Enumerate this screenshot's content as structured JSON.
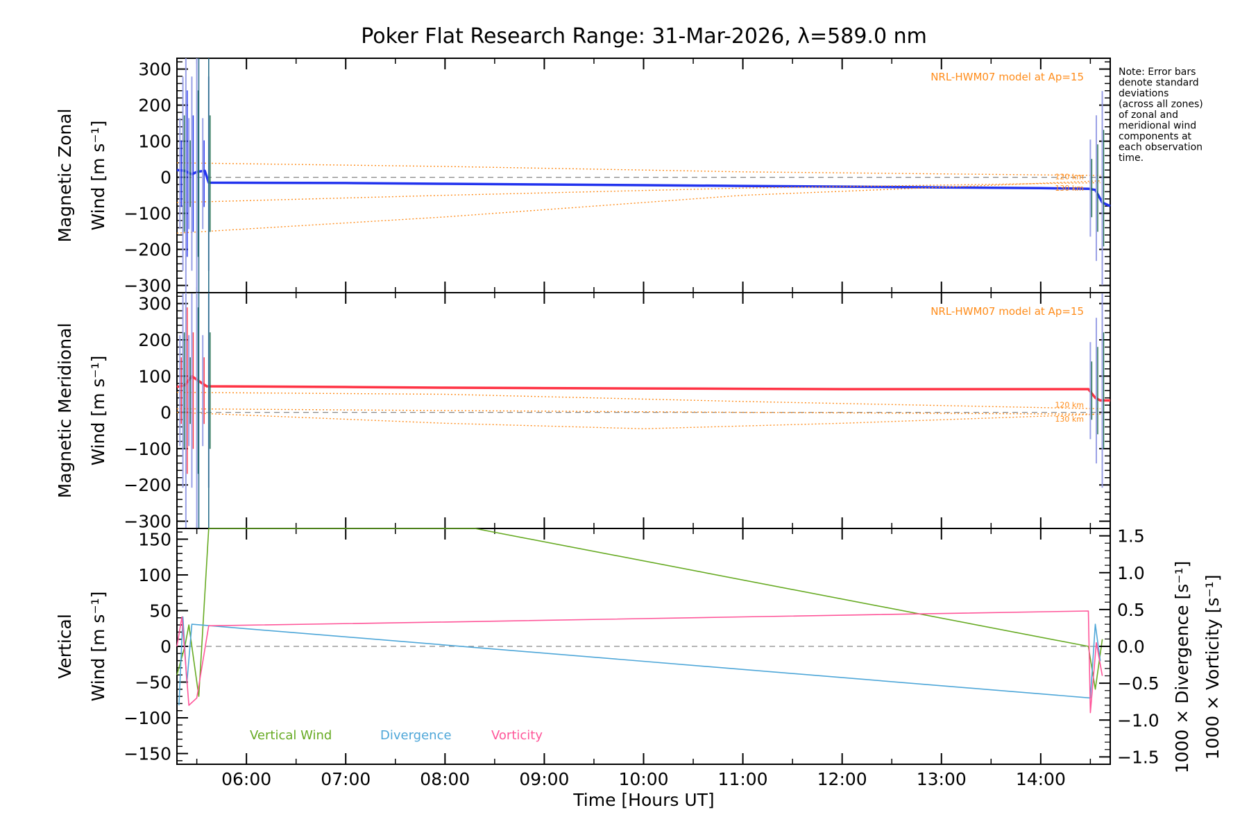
{
  "title": "Poker Flat Research Range: 31-Mar-2026, λ=589.0 nm",
  "xlabel": "Time [Hours UT]",
  "x_ticks": [
    "06:00",
    "07:00",
    "08:00",
    "09:00",
    "10:00",
    "11:00",
    "12:00",
    "13:00",
    "14:00"
  ],
  "note_lines": [
    "Note: Error bars",
    "denote standard",
    "deviations",
    "(across all zones)",
    "of zonal and",
    "meridional wind",
    "components at",
    "each observation",
    "time."
  ],
  "colors": {
    "zonal": "#2233ee",
    "meridional": "#ff3344",
    "model": "#ff8c1a",
    "vertical": "#66aa22",
    "divergence": "#4da6d8",
    "vorticity": "#ff5599",
    "errorbar_light": "#9aa0e6",
    "grid_zero": "#888888"
  },
  "chart_data": [
    {
      "type": "line",
      "name": "zonal_panel",
      "ylabel_line1": "Magnetic Zonal",
      "ylabel_line2": "Wind [m s⁻¹]",
      "ylim": [
        -320,
        330
      ],
      "y_ticks": [
        "300",
        "200",
        "100",
        "0",
        "−100",
        "−200",
        "−300"
      ],
      "y_tick_values": [
        300,
        200,
        100,
        0,
        -100,
        -200,
        -300
      ],
      "xlim_hours": [
        5.3,
        14.7
      ],
      "model_label": "NRL-HWM07 model at Ap=15",
      "alt_labels": [
        "120 km",
        "130 km"
      ],
      "series": [
        {
          "name": "Magnetic Zonal Wind",
          "x": [
            5.3,
            5.38,
            5.45,
            5.5,
            5.58,
            5.62,
            7.0,
            8.0,
            9.0,
            10.0,
            11.0,
            12.0,
            13.0,
            14.0,
            14.48,
            14.55,
            14.62,
            14.7
          ],
          "y": [
            20,
            18,
            8,
            15,
            18,
            -15,
            -16,
            -18,
            -20,
            -22,
            -24,
            -26,
            -28,
            -30,
            -32,
            -35,
            -70,
            -80
          ]
        },
        {
          "name": "Model 120 km",
          "x": [
            5.3,
            8.0,
            11.0,
            14.6
          ],
          "y": [
            40,
            30,
            15,
            5
          ]
        },
        {
          "name": "Model 130 km",
          "x": [
            5.3,
            8.0,
            11.0,
            14.6
          ],
          "y": [
            -70,
            -50,
            -30,
            -15
          ]
        },
        {
          "name": "Model lower",
          "x": [
            5.3,
            8.0,
            11.0,
            14.6
          ],
          "y": [
            -155,
            -110,
            -50,
            -10
          ]
        }
      ]
    },
    {
      "type": "line",
      "name": "meridional_panel",
      "ylabel_line1": "Magnetic Meridional",
      "ylabel_line2": "Wind [m s⁻¹]",
      "ylim": [
        -320,
        330
      ],
      "y_ticks": [
        "300",
        "200",
        "100",
        "0",
        "−100",
        "−200",
        "−300"
      ],
      "y_tick_values": [
        300,
        200,
        100,
        0,
        -100,
        -200,
        -300
      ],
      "xlim_hours": [
        5.3,
        14.7
      ],
      "model_label": "NRL-HWM07 model at Ap=15",
      "alt_labels": [
        "120 km",
        "130 km"
      ],
      "series": [
        {
          "name": "Magnetic Meridional Wind",
          "x": [
            5.3,
            5.38,
            5.45,
            5.5,
            5.6,
            7.0,
            8.0,
            9.0,
            10.0,
            11.0,
            12.0,
            13.0,
            14.0,
            14.48,
            14.55,
            14.6,
            14.7
          ],
          "y": [
            70,
            75,
            100,
            90,
            72,
            70,
            68,
            67,
            66,
            65,
            64,
            64,
            64,
            64,
            40,
            33,
            33
          ]
        },
        {
          "name": "Model 120 km",
          "x": [
            5.3,
            8.0,
            11.0,
            14.6
          ],
          "y": [
            55,
            50,
            30,
            10
          ]
        },
        {
          "name": "Model 130 km",
          "x": [
            5.3,
            8.0,
            11.0,
            14.6
          ],
          "y": [
            10,
            5,
            0,
            -5
          ]
        },
        {
          "name": "Model lower",
          "x": [
            5.3,
            8.0,
            10.0,
            12.0,
            14.6
          ],
          "y": [
            0,
            -30,
            -45,
            -30,
            -5
          ]
        }
      ]
    },
    {
      "type": "line",
      "name": "vertical_panel",
      "ylabel_left_line1": "Vertical",
      "ylabel_left_line2": "Wind [m s⁻¹]",
      "ylabel_right1": "1000 × Divergence [s⁻¹]",
      "ylabel_right2": "1000 × Vorticity [s⁻¹]",
      "ylim": [
        -165,
        165
      ],
      "y_ticks": [
        "150",
        "100",
        "50",
        "0",
        "−50",
        "−100",
        "−150"
      ],
      "y_tick_values": [
        150,
        100,
        50,
        0,
        -50,
        -100,
        -150
      ],
      "y2lim": [
        -1.6,
        1.6
      ],
      "y2_ticks": [
        "1.5",
        "1.0",
        "0.5",
        "0.0",
        "−0.5",
        "−1.0",
        "−1.5"
      ],
      "y2_tick_values": [
        1.5,
        1.0,
        0.5,
        0.0,
        -0.5,
        -1.0,
        -1.5
      ],
      "xlim_hours": [
        5.3,
        14.7
      ],
      "legend": [
        "Vertical Wind",
        "Divergence",
        "Vorticity"
      ],
      "series": [
        {
          "name": "Vertical Wind",
          "x": [
            5.3,
            5.38,
            5.42,
            5.52,
            5.62,
            8.3,
            14.48,
            14.55,
            14.62
          ],
          "y": [
            -40,
            0,
            30,
            -70,
            180,
            165,
            0,
            -60,
            10
          ]
        },
        {
          "name": "Divergence",
          "x": [
            5.32,
            5.36,
            5.4,
            5.45,
            14.5,
            14.55,
            14.6
          ],
          "y": [
            -0.8,
            0.4,
            -0.5,
            0.3,
            -0.7,
            0.3,
            -0.2
          ]
        },
        {
          "name": "Vorticity",
          "x": [
            5.3,
            5.35,
            5.42,
            5.5,
            5.62,
            8.0,
            11.0,
            14.48,
            14.5,
            14.56,
            14.62
          ],
          "y": [
            0.0,
            0.4,
            -0.8,
            -0.7,
            0.28,
            0.33,
            0.4,
            0.48,
            -0.9,
            0.05,
            -0.4
          ]
        }
      ]
    }
  ]
}
